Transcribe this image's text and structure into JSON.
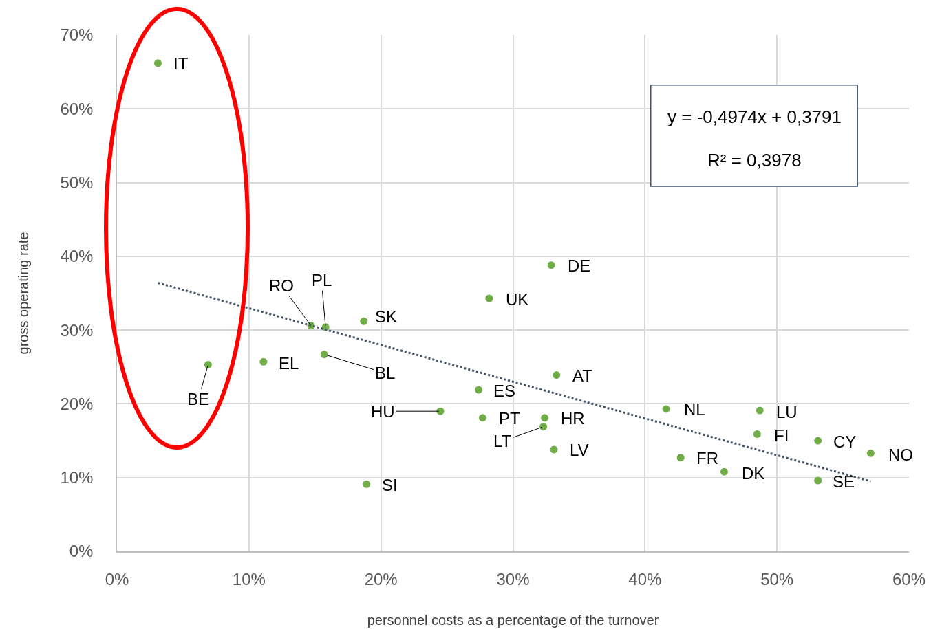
{
  "chart_data": {
    "type": "scatter",
    "xlabel": "personnel costs as a percentage of the turnover",
    "ylabel": "gross operating rate",
    "xlim": [
      0,
      60
    ],
    "ylim": [
      0,
      70
    ],
    "xticks": [
      {
        "value": 0,
        "label": "0%"
      },
      {
        "value": 10,
        "label": "10%"
      },
      {
        "value": 20,
        "label": "20%"
      },
      {
        "value": 30,
        "label": "30%"
      },
      {
        "value": 40,
        "label": "40%"
      },
      {
        "value": 50,
        "label": "50%"
      },
      {
        "value": 60,
        "label": "60%"
      }
    ],
    "yticks": [
      {
        "value": 0,
        "label": "0%"
      },
      {
        "value": 10,
        "label": "10%"
      },
      {
        "value": 20,
        "label": "20%"
      },
      {
        "value": 30,
        "label": "30%"
      },
      {
        "value": 40,
        "label": "40%"
      },
      {
        "value": 50,
        "label": "50%"
      },
      {
        "value": 60,
        "label": "60%"
      },
      {
        "value": 70,
        "label": "70%"
      }
    ],
    "grid": true,
    "marker": "circle",
    "annotations": [
      "y = -0,4974x + 0,3791",
      "R² = 0,3978"
    ],
    "series": [
      {
        "type": "scatter",
        "color": "#70ad47",
        "x": [
          3.1,
          6.9,
          11.1,
          14.7,
          15.8,
          15.7,
          18.7,
          18.9,
          24.5,
          27.4,
          27.7,
          28.2,
          32.4,
          32.3,
          32.9,
          33.3,
          33.1,
          41.6,
          42.7,
          46.0,
          48.5,
          48.7,
          53.1,
          53.1,
          57.1
        ],
        "values": [
          66.2,
          25.3,
          25.7,
          30.6,
          30.4,
          26.7,
          31.2,
          9.1,
          19.0,
          21.9,
          18.1,
          34.3,
          18.1,
          16.9,
          38.8,
          23.9,
          13.8,
          19.3,
          12.7,
          10.8,
          15.9,
          19.1,
          15.0,
          9.6,
          13.3
        ],
        "value_labels": [
          "IT",
          "BE",
          "EL",
          "RO",
          "PL",
          "BL",
          "SK",
          "SI",
          "HU",
          "ES",
          "PT",
          "UK",
          "HR",
          "LT",
          "DE",
          "AT",
          "LV",
          "NL",
          "FR",
          "DK",
          "FI",
          "LU",
          "CY",
          "SE",
          "NO"
        ]
      },
      {
        "type": "line",
        "color": "#44546a",
        "line_style": "dotted",
        "marker": "none",
        "x": [
          3.1,
          57.1
        ],
        "values": [
          36.4,
          9.5
        ]
      }
    ]
  }
}
